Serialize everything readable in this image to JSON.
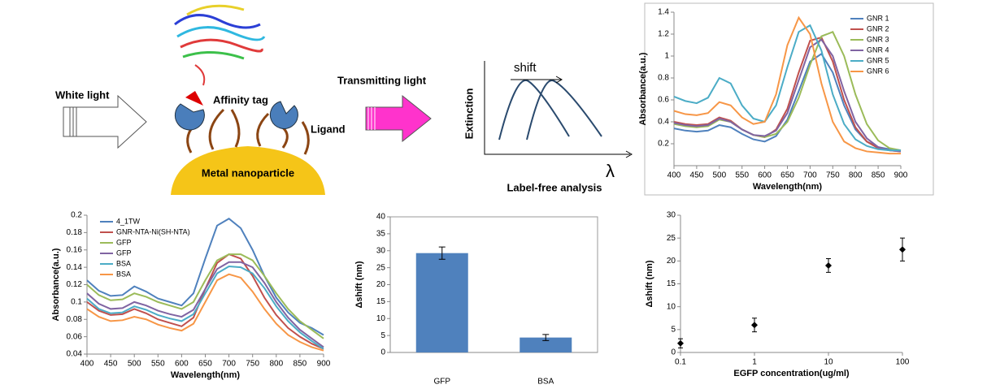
{
  "diagram": {
    "white_light": "White light",
    "affinity_tag": "Affinity tag",
    "ligand": "Ligand",
    "metal_nanoparticle": "Metal nanoparticle",
    "transmitting_light": "Transmitting light",
    "shift": "shift",
    "extinction": "Extinction",
    "lambda": "λ",
    "label_free_analysis": "Label-free analysis"
  },
  "chart_data": [
    {
      "type": "line",
      "xlabel": "Wavelength(nm)",
      "ylabel": "Absorbance(a.u.)",
      "legend": "upper right",
      "x": [
        400,
        425,
        450,
        475,
        500,
        525,
        550,
        575,
        600,
        625,
        650,
        675,
        700,
        725,
        750,
        775,
        800,
        825,
        850,
        875,
        900
      ],
      "xlim": [
        400,
        900
      ],
      "xticks": [
        400,
        450,
        500,
        550,
        600,
        650,
        700,
        750,
        800,
        850,
        900
      ],
      "ylim": [
        0,
        1.4
      ],
      "yticks": [
        0.2,
        0.4,
        0.6,
        0.8,
        1,
        1.2,
        1.4
      ],
      "series": [
        {
          "name": "GNR 1",
          "color": "#4f81bd",
          "values": [
            0.34,
            0.32,
            0.31,
            0.32,
            0.37,
            0.35,
            0.29,
            0.24,
            0.22,
            0.27,
            0.42,
            0.68,
            0.95,
            1.02,
            0.85,
            0.55,
            0.33,
            0.22,
            0.17,
            0.15,
            0.14
          ]
        },
        {
          "name": "GNR 2",
          "color": "#c0504d",
          "values": [
            0.4,
            0.38,
            0.37,
            0.38,
            0.44,
            0.41,
            0.33,
            0.28,
            0.26,
            0.33,
            0.52,
            0.85,
            1.14,
            1.17,
            0.95,
            0.6,
            0.35,
            0.22,
            0.16,
            0.14,
            0.13
          ]
        },
        {
          "name": "GNR 3",
          "color": "#9bbb59",
          "values": [
            0.38,
            0.36,
            0.35,
            0.36,
            0.42,
            0.4,
            0.33,
            0.28,
            0.26,
            0.29,
            0.4,
            0.62,
            0.92,
            1.18,
            1.22,
            1.0,
            0.65,
            0.38,
            0.23,
            0.16,
            0.14
          ]
        },
        {
          "name": "GNR 4",
          "color": "#8064a2",
          "values": [
            0.39,
            0.37,
            0.36,
            0.37,
            0.43,
            0.4,
            0.33,
            0.28,
            0.27,
            0.32,
            0.48,
            0.78,
            1.08,
            1.15,
            1.0,
            0.68,
            0.4,
            0.25,
            0.17,
            0.14,
            0.13
          ]
        },
        {
          "name": "GNR 5",
          "color": "#4bacc6",
          "values": [
            0.63,
            0.59,
            0.57,
            0.62,
            0.8,
            0.75,
            0.55,
            0.43,
            0.4,
            0.55,
            0.9,
            1.22,
            1.28,
            1.05,
            0.65,
            0.38,
            0.24,
            0.18,
            0.15,
            0.14,
            0.14
          ]
        },
        {
          "name": "GNR 6",
          "color": "#f79646",
          "values": [
            0.5,
            0.47,
            0.46,
            0.48,
            0.58,
            0.55,
            0.44,
            0.38,
            0.4,
            0.65,
            1.1,
            1.35,
            1.2,
            0.75,
            0.4,
            0.22,
            0.16,
            0.13,
            0.12,
            0.11,
            0.11
          ]
        }
      ]
    },
    {
      "type": "line",
      "xlabel": "Wavelength(nm)",
      "ylabel": "Absorbance(a.u.)",
      "legend": "upper left",
      "x": [
        400,
        425,
        450,
        475,
        500,
        525,
        550,
        575,
        600,
        625,
        650,
        675,
        700,
        725,
        750,
        775,
        800,
        825,
        850,
        875,
        900
      ],
      "xlim": [
        400,
        900
      ],
      "xticks": [
        400,
        450,
        500,
        550,
        600,
        650,
        700,
        750,
        800,
        850,
        900
      ],
      "ylim": [
        0.04,
        0.2
      ],
      "yticks": [
        0.04,
        0.06,
        0.08,
        0.1,
        0.12,
        0.14,
        0.16,
        0.18,
        0.2
      ],
      "series": [
        {
          "name": "4_1TW",
          "color": "#4f81bd",
          "values": [
            0.125,
            0.113,
            0.107,
            0.108,
            0.118,
            0.112,
            0.104,
            0.1,
            0.096,
            0.11,
            0.15,
            0.188,
            0.196,
            0.185,
            0.16,
            0.13,
            0.105,
            0.088,
            0.076,
            0.07,
            0.062
          ]
        },
        {
          "name": "GNR-NTA-Ni(SH-NTA)",
          "color": "#c0504d",
          "values": [
            0.1,
            0.09,
            0.085,
            0.086,
            0.092,
            0.087,
            0.08,
            0.076,
            0.072,
            0.082,
            0.115,
            0.145,
            0.155,
            0.15,
            0.13,
            0.105,
            0.085,
            0.07,
            0.06,
            0.052,
            0.046
          ]
        },
        {
          "name": "GFP",
          "color": "#9bbb59",
          "values": [
            0.12,
            0.108,
            0.102,
            0.103,
            0.11,
            0.106,
            0.1,
            0.096,
            0.092,
            0.1,
            0.125,
            0.148,
            0.155,
            0.155,
            0.148,
            0.13,
            0.11,
            0.092,
            0.078,
            0.068,
            0.058
          ]
        },
        {
          "name": "GFP",
          "color": "#8064a2",
          "values": [
            0.11,
            0.098,
            0.092,
            0.093,
            0.1,
            0.096,
            0.09,
            0.086,
            0.083,
            0.091,
            0.115,
            0.138,
            0.146,
            0.146,
            0.14,
            0.122,
            0.1,
            0.082,
            0.068,
            0.058,
            0.048
          ]
        },
        {
          "name": "BSA",
          "color": "#4bacc6",
          "values": [
            0.104,
            0.092,
            0.087,
            0.088,
            0.095,
            0.091,
            0.085,
            0.081,
            0.078,
            0.086,
            0.11,
            0.133,
            0.141,
            0.14,
            0.133,
            0.116,
            0.095,
            0.078,
            0.065,
            0.055,
            0.046
          ]
        },
        {
          "name": "BSA",
          "color": "#f79646",
          "values": [
            0.092,
            0.083,
            0.078,
            0.079,
            0.083,
            0.08,
            0.074,
            0.07,
            0.067,
            0.075,
            0.1,
            0.125,
            0.132,
            0.128,
            0.112,
            0.092,
            0.075,
            0.062,
            0.054,
            0.048,
            0.044
          ]
        }
      ]
    },
    {
      "type": "bar",
      "ylabel": "Δshift (nm)",
      "categories": [
        "GFP",
        "BSA"
      ],
      "values": [
        29.3,
        4.4
      ],
      "errors": [
        1.8,
        0.9
      ],
      "color": "#4f81bd",
      "ylim": [
        0,
        40
      ],
      "yticks": [
        0,
        5,
        10,
        15,
        20,
        25,
        30,
        35,
        40
      ]
    },
    {
      "type": "scatter",
      "xlabel": "EGFP concentration(ug/ml)",
      "ylabel": "Δshift (nm)",
      "xlog": true,
      "x": [
        0.1,
        1,
        10,
        100
      ],
      "values": [
        2,
        6,
        19,
        22.5
      ],
      "errors": [
        1,
        1.5,
        1.5,
        2.5
      ],
      "color": "#000000",
      "xlim": [
        0.1,
        100
      ],
      "xticks": [
        0.1,
        1,
        10,
        100
      ],
      "ylim": [
        0,
        30
      ],
      "yticks": [
        0,
        5,
        10,
        15,
        20,
        25,
        30
      ]
    }
  ]
}
